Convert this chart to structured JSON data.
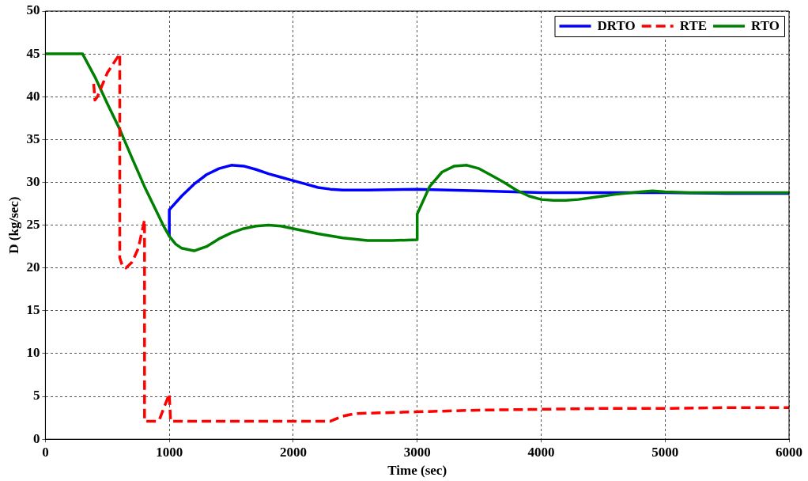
{
  "chart_data": {
    "type": "line",
    "xlabel": "Time (sec)",
    "ylabel": "D (kg/sec)",
    "xlim": [
      0,
      6000
    ],
    "xticks": [
      0,
      1000,
      2000,
      3000,
      4000,
      5000,
      6000
    ],
    "ylim": [
      0,
      50
    ],
    "yticks": [
      0,
      5,
      10,
      15,
      20,
      25,
      30,
      35,
      40,
      45,
      50
    ],
    "grid": true,
    "legend": "top right",
    "marker": "none",
    "series": [
      {
        "name": "DRTO",
        "color": "#0000ff",
        "line_style": "solid",
        "x": [
          1000,
          1000,
          1100,
          1200,
          1300,
          1400,
          1500,
          1600,
          1700,
          1800,
          1900,
          2000,
          2100,
          2200,
          2300,
          2400,
          2600,
          3000,
          3500,
          4000,
          4500,
          5000,
          5500,
          6000
        ],
        "values": [
          23.7,
          26.8,
          28.4,
          29.8,
          30.9,
          31.6,
          32,
          31.9,
          31.5,
          31,
          30.6,
          30.2,
          29.8,
          29.4,
          29.2,
          29.1,
          29.1,
          29.2,
          29,
          28.8,
          28.8,
          28.8,
          28.7,
          28.7
        ]
      },
      {
        "name": "RTE",
        "color": "#ff0000",
        "line_style": "dashed",
        "x": [
          390,
          400,
          420,
          500,
          600,
          600,
          620,
          650,
          700,
          750,
          800,
          800,
          810,
          900,
          920,
          1000,
          1010,
          1500,
          2000,
          2300,
          2400,
          2500,
          3000,
          3500,
          4000,
          4500,
          5000,
          5500,
          6000
        ],
        "values": [
          41.5,
          39.6,
          40,
          42.8,
          45,
          21.2,
          20.3,
          20,
          20.7,
          22.3,
          25.6,
          2.1,
          2.1,
          2.1,
          2.3,
          5.3,
          2.1,
          2.1,
          2.1,
          2.1,
          2.7,
          3,
          3.2,
          3.4,
          3.5,
          3.6,
          3.6,
          3.7,
          3.7
        ]
      },
      {
        "name": "RTO",
        "color": "#008000",
        "line_style": "solid",
        "x": [
          0,
          300,
          400,
          500,
          600,
          700,
          800,
          900,
          950,
          1000,
          1050,
          1100,
          1200,
          1300,
          1400,
          1500,
          1600,
          1700,
          1800,
          1900,
          2000,
          2200,
          2400,
          2600,
          2800,
          3000,
          3000,
          3100,
          3200,
          3300,
          3400,
          3500,
          3600,
          3700,
          3800,
          3900,
          4000,
          4100,
          4200,
          4300,
          4400,
          4600,
          4800,
          4900,
          5000,
          5200,
          5500,
          6000
        ],
        "values": [
          45,
          45,
          42.3,
          39.2,
          36.2,
          32.8,
          29.5,
          26.5,
          25,
          23.7,
          22.8,
          22.3,
          22,
          22.5,
          23.4,
          24.1,
          24.6,
          24.9,
          25,
          24.9,
          24.6,
          24,
          23.5,
          23.2,
          23.2,
          23.3,
          26.3,
          29.5,
          31.2,
          31.9,
          32,
          31.6,
          30.8,
          30,
          29.1,
          28.4,
          28,
          27.9,
          27.9,
          28,
          28.2,
          28.6,
          28.9,
          29,
          28.9,
          28.8,
          28.8,
          28.8
        ]
      }
    ]
  }
}
